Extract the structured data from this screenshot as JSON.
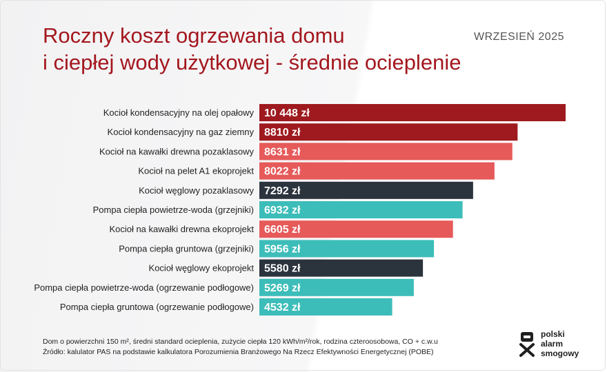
{
  "header": {
    "title_line1": "Roczny koszt ogrzewania domu",
    "title_line2": "i ciepłej wody użytkowej - średnie ocieplenie",
    "date": "WRZESIEŃ 2025"
  },
  "colors": {
    "title": "#a3171e",
    "oil_gas": "#9e1a1f",
    "wood_pellet": "#e65a5a",
    "coal": "#2b333d",
    "heat_pump": "#3dbdb9"
  },
  "chart_data": {
    "type": "bar",
    "orientation": "horizontal",
    "categories": [
      "Kocioł kondensacyjny na olej opałowy",
      "Kocioł kondensacyjny na gaz ziemny",
      "Kocioł na kawałki drewna pozaklasowy",
      "Kocioł na pelet A1 ekoprojekt",
      "Kocioł węglowy pozaklasowy",
      "Pompa ciepła powietrze-woda (grzejniki)",
      "Kocioł na kawałki drewna ekoprojekt",
      "Pompa ciepła gruntowa (grzejniki)",
      "Kocioł węglowy ekoprojekt",
      "Pompa ciepła powietrze-woda (ogrzewanie podłogowe)",
      "Pompa ciepła gruntowa (ogrzewanie podłogowe)"
    ],
    "values": [
      10448,
      8810,
      8631,
      8022,
      7292,
      6932,
      6605,
      5956,
      5580,
      5269,
      4532
    ],
    "value_labels": [
      "10 448 zł",
      "8810 zł",
      "8631 zł",
      "8022 zł",
      "7292 zł",
      "6932 zł",
      "6605 zł",
      "5956 zł",
      "5580 zł",
      "5269 zł",
      "4532 zł"
    ],
    "bar_colors": [
      "#9e1a1f",
      "#9e1a1f",
      "#e65a5a",
      "#e65a5a",
      "#2b333d",
      "#3dbdb9",
      "#e65a5a",
      "#3dbdb9",
      "#2b333d",
      "#3dbdb9",
      "#3dbdb9"
    ],
    "xlim": [
      0,
      10448
    ],
    "grid": false
  },
  "footnote": {
    "line1": "Dom o powierzchni 150 m², średni standard ocieplenia, zużycie ciepła 120 kWh/m²/rok, rodzina czteroosobowa, CO + c.w.u",
    "line2": "Źródło: kalulator PAS na podstawie kalkulatora Porozumienia Branżowego Na Rzecz Efektywności Energetycznej (POBE)"
  },
  "logo": {
    "line1": "polski",
    "line2": "alarm",
    "line3": "smogowy",
    "icon": "mask-icon"
  }
}
